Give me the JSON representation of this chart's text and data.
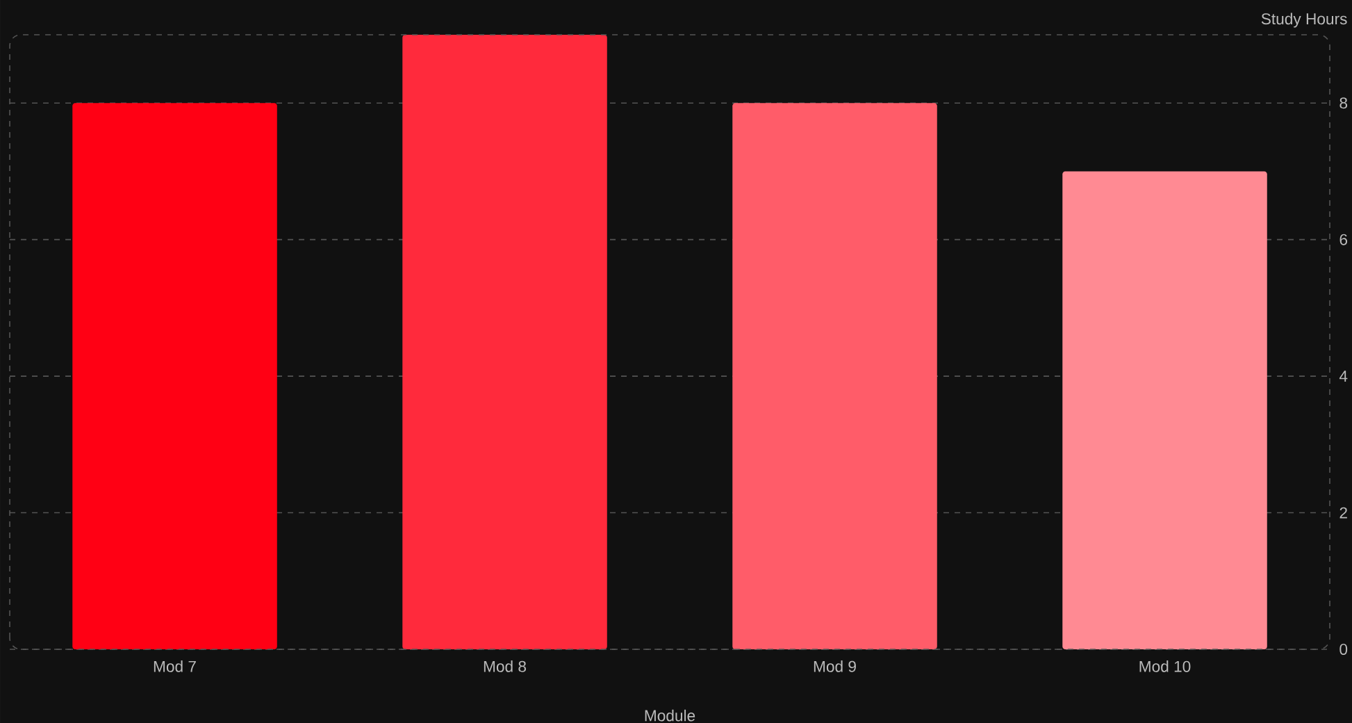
{
  "chart_data": {
    "type": "bar",
    "xlabel": "Module",
    "ylabel": "Study Hours",
    "categories": [
      "Mod 7",
      "Mod 8",
      "Mod 9",
      "Mod 10"
    ],
    "values": [
      8,
      9,
      8,
      7
    ],
    "colors": [
      "#ff0014",
      "#ff2a3c",
      "#ff5c69",
      "#ff8a93"
    ],
    "ylim": [
      0,
      9
    ],
    "yticks": [
      0,
      2,
      4,
      6,
      8
    ],
    "grid": "y"
  }
}
